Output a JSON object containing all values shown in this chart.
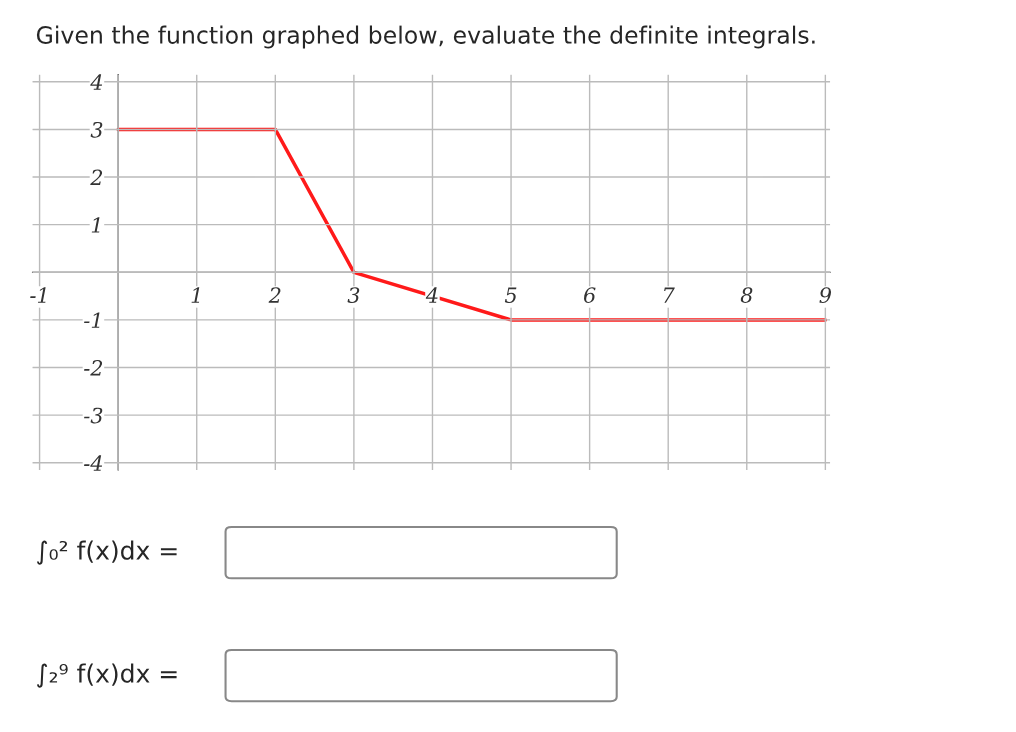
{
  "chart_data": {
    "type": "line",
    "title": "Given the function graphed below, evaluate the definite integrals.",
    "x": [
      0,
      2,
      3,
      5,
      9
    ],
    "series": [
      {
        "color": "#ff1a1a",
        "values": [
          3,
          3,
          0,
          -1,
          -1
        ]
      }
    ],
    "xlim": [
      -1.09,
      9.06
    ],
    "ylim": [
      -4.15,
      4.15
    ],
    "xticks": [
      -1,
      {
        "value": 0,
        "label": null
      },
      1,
      2,
      3,
      4,
      5,
      6,
      7,
      8,
      9
    ],
    "yticks": [
      -4,
      -3,
      -2,
      -1,
      {
        "value": 0,
        "label": null
      },
      1,
      2,
      3,
      4
    ],
    "grid": true,
    "marker": "none",
    "line_style": "solid",
    "annotations": [
      "∫₀² f(x)dx =",
      "∫₂⁹ f(x)dx ="
    ]
  }
}
